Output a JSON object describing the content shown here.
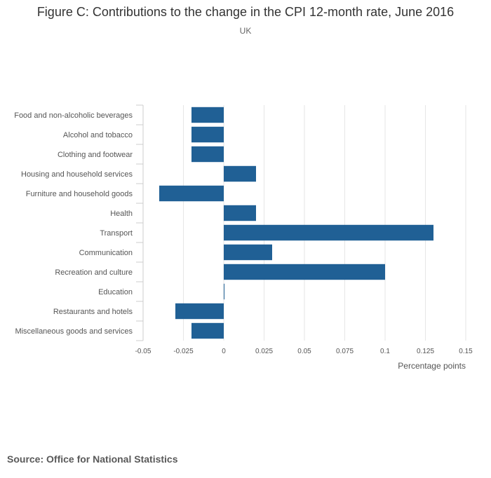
{
  "chart_data": {
    "type": "bar",
    "orientation": "horizontal",
    "title": "Figure C: Contributions to the change in the CPI 12-month rate, June 2016",
    "subtitle": "UK",
    "xlabel": "Percentage points",
    "ylabel": "",
    "xlim": [
      -0.05,
      0.15
    ],
    "xticks": [
      -0.05,
      -0.025,
      0,
      0.025,
      0.05,
      0.075,
      0.1,
      0.125,
      0.15
    ],
    "xtick_labels": [
      "-0.05",
      "-0.025",
      "0",
      "0.025",
      "0.05",
      "0.075",
      "0.1",
      "0.125",
      "0.15"
    ],
    "categories": [
      "Food and non-alcoholic beverages",
      "Alcohol and tobacco",
      "Clothing and footwear",
      "Housing and household services",
      "Furniture and household goods",
      "Health",
      "Transport",
      "Communication",
      "Recreation and culture",
      "Education",
      "Restaurants and hotels",
      "Miscellaneous goods and services"
    ],
    "values": [
      -0.02,
      -0.02,
      -0.02,
      0.02,
      -0.04,
      0.02,
      0.13,
      0.03,
      0.1,
      0.0,
      -0.03,
      -0.02
    ],
    "bar_color": "#206095",
    "grid": true
  },
  "source": "Source: Office for National Statistics"
}
